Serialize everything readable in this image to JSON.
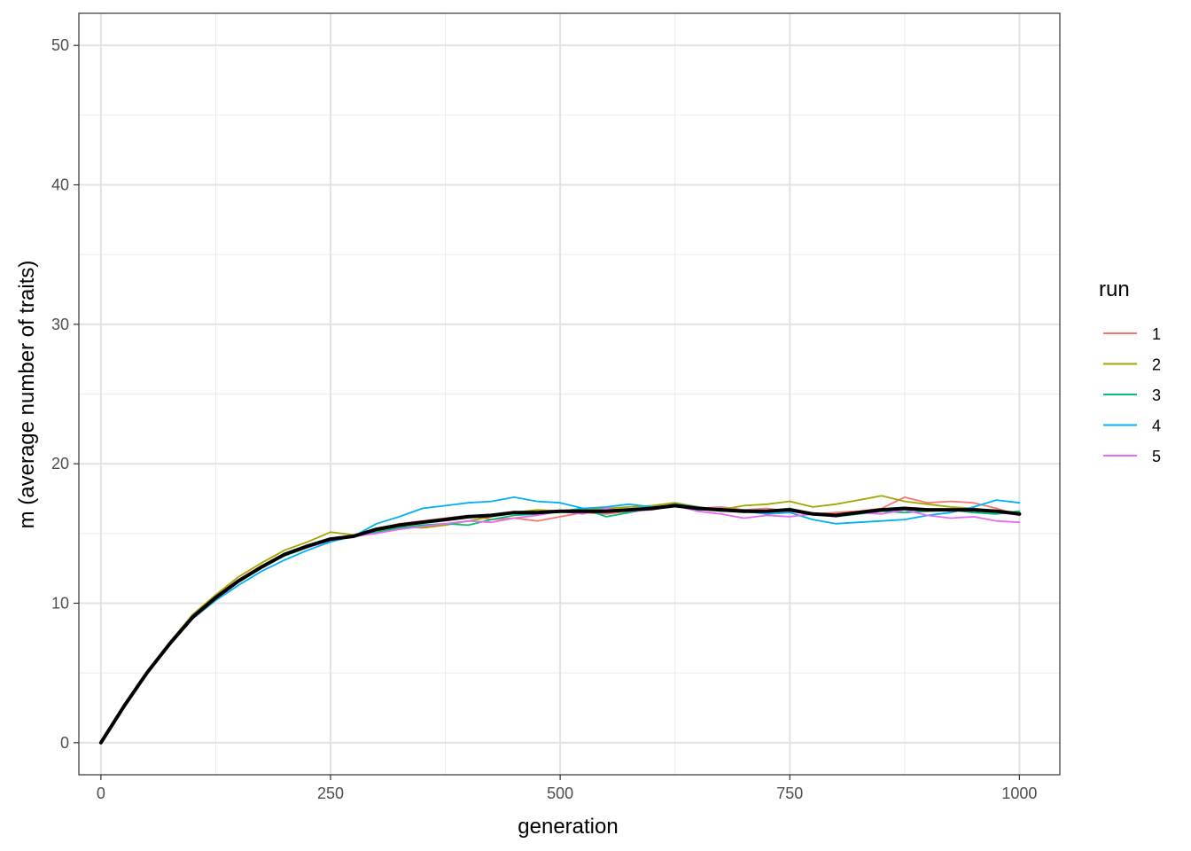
{
  "chart_data": {
    "type": "line",
    "title": "",
    "xlabel": "generation",
    "ylabel": "m (average number of traits)",
    "xlim": [
      -24,
      1044
    ],
    "ylim": [
      -2.3,
      52.3
    ],
    "x_ticks": [
      0,
      250,
      500,
      750,
      1000
    ],
    "x_tick_labels": [
      "0",
      "250",
      "500",
      "750",
      "1000"
    ],
    "y_ticks": [
      0,
      10,
      20,
      30,
      40,
      50
    ],
    "y_tick_labels": [
      "0",
      "10",
      "20",
      "30",
      "40",
      "50"
    ],
    "grid": true,
    "legend": {
      "title": "run",
      "position": "right"
    },
    "series": [
      {
        "name": "1",
        "color": "#F8766D",
        "x": [
          0,
          25,
          50,
          75,
          100,
          125,
          150,
          175,
          200,
          225,
          250,
          275,
          300,
          325,
          350,
          375,
          400,
          425,
          450,
          475,
          500,
          525,
          550,
          575,
          600,
          625,
          650,
          675,
          700,
          725,
          750,
          775,
          800,
          825,
          850,
          875,
          900,
          925,
          950,
          975,
          1000
        ],
        "y": [
          0,
          2.6,
          5.0,
          7.2,
          9.1,
          10.5,
          11.7,
          12.7,
          13.5,
          14.1,
          14.6,
          14.9,
          15.3,
          15.7,
          15.9,
          16.1,
          16.3,
          16.0,
          16.1,
          15.9,
          16.2,
          16.5,
          16.4,
          16.6,
          16.8,
          17.0,
          16.8,
          16.9,
          16.7,
          16.8,
          16.6,
          16.4,
          16.5,
          16.6,
          16.8,
          17.6,
          17.2,
          17.3,
          17.2,
          16.8,
          16.3
        ]
      },
      {
        "name": "2",
        "color": "#A3A500",
        "x": [
          0,
          25,
          50,
          75,
          100,
          125,
          150,
          175,
          200,
          225,
          250,
          275,
          300,
          325,
          350,
          375,
          400,
          425,
          450,
          475,
          500,
          525,
          550,
          575,
          600,
          625,
          650,
          675,
          700,
          725,
          750,
          775,
          800,
          825,
          850,
          875,
          900,
          925,
          950,
          975,
          1000
        ],
        "y": [
          0,
          2.6,
          5.0,
          7.2,
          9.2,
          10.6,
          11.9,
          12.9,
          13.8,
          14.4,
          15.1,
          14.9,
          15.2,
          15.5,
          15.4,
          15.6,
          15.9,
          16.2,
          16.5,
          16.7,
          16.6,
          16.7,
          16.8,
          16.9,
          17.0,
          17.2,
          16.9,
          16.7,
          17.0,
          17.1,
          17.3,
          16.9,
          17.1,
          17.4,
          17.7,
          17.3,
          17.1,
          16.9,
          16.8,
          16.6,
          16.5
        ]
      },
      {
        "name": "3",
        "color": "#00BF7D",
        "x": [
          0,
          25,
          50,
          75,
          100,
          125,
          150,
          175,
          200,
          225,
          250,
          275,
          300,
          325,
          350,
          375,
          400,
          425,
          450,
          475,
          500,
          525,
          550,
          575,
          600,
          625,
          650,
          675,
          700,
          725,
          750,
          775,
          800,
          825,
          850,
          875,
          900,
          925,
          950,
          975,
          1000
        ],
        "y": [
          0,
          2.6,
          5.0,
          7.1,
          9.0,
          10.4,
          11.6,
          12.6,
          13.4,
          14.0,
          14.5,
          14.8,
          15.1,
          15.4,
          15.6,
          15.7,
          15.6,
          16.0,
          16.3,
          16.4,
          16.6,
          16.8,
          16.2,
          16.5,
          16.8,
          17.1,
          16.9,
          16.6,
          16.7,
          16.6,
          16.8,
          16.4,
          16.2,
          16.4,
          16.6,
          16.5,
          16.6,
          16.7,
          16.5,
          16.4,
          16.6
        ]
      },
      {
        "name": "4",
        "color": "#00B0F6",
        "x": [
          0,
          25,
          50,
          75,
          100,
          125,
          150,
          175,
          200,
          225,
          250,
          275,
          300,
          325,
          350,
          375,
          400,
          425,
          450,
          475,
          500,
          525,
          550,
          575,
          600,
          625,
          650,
          675,
          700,
          725,
          750,
          775,
          800,
          825,
          850,
          875,
          900,
          925,
          950,
          975,
          1000
        ],
        "y": [
          0,
          2.5,
          4.9,
          7.0,
          8.9,
          10.2,
          11.3,
          12.3,
          13.1,
          13.8,
          14.4,
          14.8,
          15.7,
          16.2,
          16.8,
          17.0,
          17.2,
          17.3,
          17.6,
          17.3,
          17.2,
          16.8,
          16.9,
          17.1,
          16.9,
          17.0,
          16.7,
          16.8,
          16.6,
          16.4,
          16.5,
          16.0,
          15.7,
          15.8,
          15.9,
          16.0,
          16.3,
          16.5,
          16.9,
          17.4,
          17.2
        ]
      },
      {
        "name": "5",
        "color": "#E76BF3",
        "x": [
          0,
          25,
          50,
          75,
          100,
          125,
          150,
          175,
          200,
          225,
          250,
          275,
          300,
          325,
          350,
          375,
          400,
          425,
          450,
          475,
          500,
          525,
          550,
          575,
          600,
          625,
          650,
          675,
          700,
          725,
          750,
          775,
          800,
          825,
          850,
          875,
          900,
          925,
          950,
          975,
          1000
        ],
        "y": [
          0,
          2.6,
          5.0,
          7.1,
          9.0,
          10.4,
          11.7,
          12.6,
          13.5,
          14.0,
          14.5,
          14.8,
          15.0,
          15.3,
          15.5,
          15.7,
          15.9,
          15.8,
          16.1,
          16.3,
          16.6,
          16.4,
          16.8,
          16.6,
          16.7,
          17.0,
          16.6,
          16.4,
          16.1,
          16.3,
          16.2,
          16.4,
          16.2,
          16.5,
          16.4,
          16.7,
          16.3,
          16.1,
          16.2,
          15.9,
          15.8
        ]
      },
      {
        "name": "",
        "color": "#000000",
        "x": [
          0,
          25,
          50,
          75,
          100,
          125,
          150,
          175,
          200,
          225,
          250,
          275,
          300,
          325,
          350,
          375,
          400,
          425,
          450,
          475,
          500,
          525,
          550,
          575,
          600,
          625,
          650,
          675,
          700,
          725,
          750,
          775,
          800,
          825,
          850,
          875,
          900,
          925,
          950,
          975,
          1000
        ],
        "y": [
          0,
          2.6,
          5.0,
          7.1,
          9.0,
          10.4,
          11.6,
          12.6,
          13.5,
          14.1,
          14.6,
          14.8,
          15.3,
          15.6,
          15.8,
          16.0,
          16.2,
          16.3,
          16.5,
          16.5,
          16.6,
          16.6,
          16.6,
          16.7,
          16.8,
          17.0,
          16.8,
          16.7,
          16.6,
          16.6,
          16.7,
          16.4,
          16.3,
          16.5,
          16.7,
          16.8,
          16.7,
          16.7,
          16.7,
          16.6,
          16.4
        ]
      }
    ]
  }
}
